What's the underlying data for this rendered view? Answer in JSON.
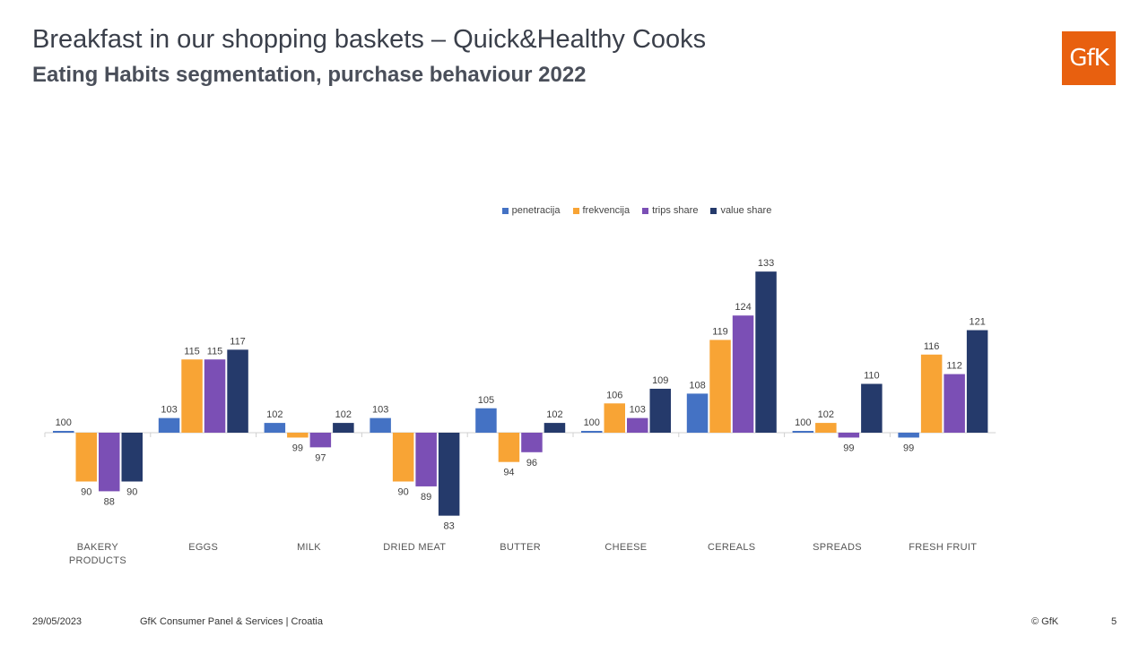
{
  "header": {
    "title": "Breakfast in our shopping baskets – Quick&Healthy Cooks",
    "subtitle": "Eating Habits segmentation, purchase behaviour 2022",
    "logo_text": "GfK",
    "logo_color": "#e8600f"
  },
  "chart_data": {
    "type": "bar",
    "categories": [
      "BAKERY PRODUCTS",
      "EGGS",
      "MILK",
      "DRIED MEAT",
      "BUTTER",
      "CHEESE",
      "CEREALS",
      "SPREADS",
      "FRESH FRUIT"
    ],
    "baseline": 100,
    "ylim": [
      80,
      136
    ],
    "legend_position": "top",
    "series": [
      {
        "name": "penetracija",
        "color": "#4472c4",
        "values": [
          100,
          103,
          102,
          103,
          105,
          100,
          108,
          100,
          99
        ]
      },
      {
        "name": "frekvencija",
        "color": "#f8a435",
        "values": [
          90,
          115,
          99,
          90,
          94,
          106,
          119,
          102,
          116
        ]
      },
      {
        "name": "trips share",
        "color": "#7b4fb5",
        "values": [
          88,
          115,
          97,
          89,
          96,
          103,
          124,
          99,
          112
        ]
      },
      {
        "name": "value share",
        "color": "#253a6b",
        "values": [
          90,
          117,
          102,
          83,
          102,
          109,
          133,
          110,
          121
        ]
      }
    ]
  },
  "footer": {
    "date": "29/05/2023",
    "source": "GfK Consumer Panel & Services | Croatia",
    "copyright": "© GfK",
    "page_number": "5"
  }
}
